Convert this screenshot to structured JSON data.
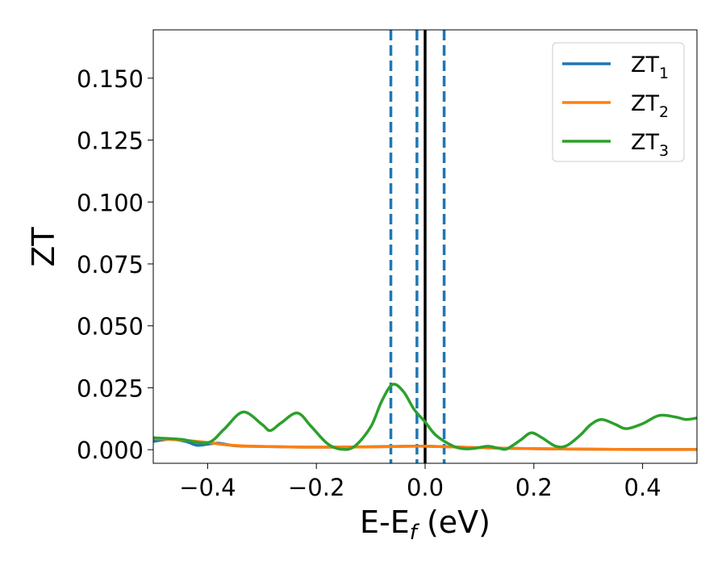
{
  "chart_data": {
    "type": "line",
    "xlabel": {
      "main": "E-E",
      "sub": "f",
      "suffix": " (eV)"
    },
    "ylabel": "ZT",
    "xlim": [
      -0.5,
      0.5
    ],
    "ylim": [
      -0.0055,
      0.1695
    ],
    "xticks": [
      -0.4,
      -0.2,
      0.0,
      0.2,
      0.4
    ],
    "xtick_labels": [
      "−0.4",
      "−0.2",
      "0.0",
      "0.2",
      "0.4"
    ],
    "yticks": [
      0.0,
      0.025,
      0.05,
      0.075,
      0.1,
      0.125,
      0.15
    ],
    "ytick_labels": [
      "0.000",
      "0.025",
      "0.050",
      "0.075",
      "0.100",
      "0.125",
      "0.150"
    ],
    "grid": false,
    "legend_position": "top-right",
    "vlines": [
      {
        "x": -0.063,
        "style": "dashed",
        "color": "#1f77b4"
      },
      {
        "x": -0.015,
        "style": "dashed",
        "color": "#1f77b4"
      },
      {
        "x": 0.035,
        "style": "dashed",
        "color": "#1f77b4"
      },
      {
        "x": 0.0,
        "style": "solid",
        "color": "#000000"
      }
    ],
    "series": [
      {
        "name": "ZT",
        "name_sub": "1",
        "color": "#1f77b4",
        "x": [
          -0.5,
          -0.47,
          -0.44,
          -0.42,
          -0.4,
          -0.38,
          -0.35,
          -0.3,
          -0.2,
          -0.1,
          0.0,
          0.1,
          0.2,
          0.3,
          0.4,
          0.5
        ],
        "y": [
          0.0033,
          0.0042,
          0.0033,
          0.0018,
          0.0022,
          0.0026,
          0.0016,
          0.0013,
          0.001,
          0.0012,
          0.0014,
          0.0008,
          0.0004,
          0.0002,
          0.0001,
          0.0001
        ]
      },
      {
        "name": "ZT",
        "name_sub": "2",
        "color": "#ff7f0e",
        "x": [
          -0.5,
          -0.45,
          -0.4,
          -0.38,
          -0.35,
          -0.3,
          -0.2,
          -0.1,
          -0.05,
          0.0,
          0.05,
          0.1,
          0.2,
          0.3,
          0.4,
          0.5
        ],
        "y": [
          0.0045,
          0.0039,
          0.0029,
          0.0023,
          0.0017,
          0.0013,
          0.001,
          0.0011,
          0.0013,
          0.0014,
          0.0011,
          0.0008,
          0.0004,
          0.0002,
          0.0001,
          0.0001
        ]
      },
      {
        "name": "ZT",
        "name_sub": "3",
        "color": "#2ca02c",
        "x": [
          -0.5,
          -0.45,
          -0.4,
          -0.37,
          -0.335,
          -0.3,
          -0.285,
          -0.265,
          -0.235,
          -0.21,
          -0.18,
          -0.155,
          -0.13,
          -0.1,
          -0.08,
          -0.06,
          -0.04,
          -0.02,
          0.0,
          0.02,
          0.05,
          0.07,
          0.09,
          0.115,
          0.135,
          0.15,
          0.175,
          0.195,
          0.215,
          0.24,
          0.26,
          0.285,
          0.305,
          0.325,
          0.35,
          0.37,
          0.4,
          0.43,
          0.46,
          0.48,
          0.5
        ],
        "y": [
          0.0048,
          0.0042,
          0.0028,
          0.0082,
          0.0152,
          0.0102,
          0.0077,
          0.0108,
          0.0148,
          0.0095,
          0.0025,
          0.0002,
          0.0013,
          0.0092,
          0.0195,
          0.0263,
          0.0235,
          0.0162,
          0.0112,
          0.0058,
          0.0016,
          0.0004,
          0.0005,
          0.0014,
          0.0006,
          0.0003,
          0.0038,
          0.0068,
          0.0048,
          0.0014,
          0.0016,
          0.0058,
          0.0102,
          0.0122,
          0.0102,
          0.0085,
          0.0105,
          0.0138,
          0.0132,
          0.0122,
          0.0128
        ]
      }
    ]
  }
}
